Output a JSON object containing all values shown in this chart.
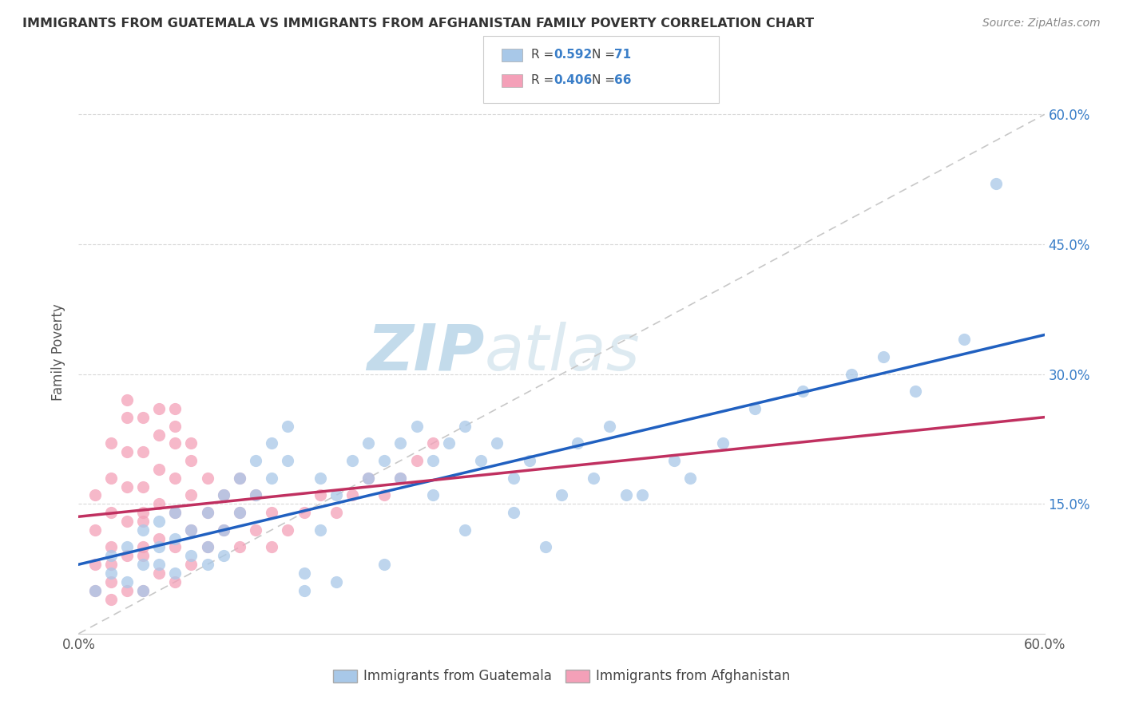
{
  "title": "IMMIGRANTS FROM GUATEMALA VS IMMIGRANTS FROM AFGHANISTAN FAMILY POVERTY CORRELATION CHART",
  "source": "Source: ZipAtlas.com",
  "ylabel": "Family Poverty",
  "legend_label1": "Immigrants from Guatemala",
  "legend_label2": "Immigrants from Afghanistan",
  "R1": "0.592",
  "N1": "71",
  "R2": "0.406",
  "N2": "66",
  "xlim": [
    0.0,
    0.6
  ],
  "ylim": [
    0.0,
    0.65
  ],
  "color_guatemala": "#a8c8e8",
  "color_afghanistan": "#f4a0b8",
  "line_color_guatemala": "#2060c0",
  "line_color_afghanistan": "#c03060",
  "line_color_diagonal": "#c8c8c8",
  "watermark_zip": "ZIP",
  "watermark_atlas": "atlas",
  "background_color": "#ffffff",
  "guatemala_x": [
    0.01,
    0.02,
    0.02,
    0.03,
    0.03,
    0.04,
    0.04,
    0.04,
    0.05,
    0.05,
    0.05,
    0.06,
    0.06,
    0.06,
    0.07,
    0.07,
    0.08,
    0.08,
    0.08,
    0.09,
    0.09,
    0.09,
    0.1,
    0.1,
    0.11,
    0.11,
    0.12,
    0.12,
    0.13,
    0.13,
    0.14,
    0.15,
    0.15,
    0.16,
    0.17,
    0.18,
    0.18,
    0.19,
    0.2,
    0.2,
    0.21,
    0.22,
    0.22,
    0.23,
    0.24,
    0.25,
    0.26,
    0.27,
    0.28,
    0.3,
    0.31,
    0.32,
    0.33,
    0.35,
    0.37,
    0.38,
    0.4,
    0.42,
    0.45,
    0.48,
    0.5,
    0.52,
    0.55,
    0.57,
    0.14,
    0.16,
    0.19,
    0.24,
    0.27,
    0.29,
    0.34
  ],
  "guatemala_y": [
    0.05,
    0.07,
    0.09,
    0.06,
    0.1,
    0.08,
    0.12,
    0.05,
    0.1,
    0.08,
    0.13,
    0.07,
    0.11,
    0.14,
    0.09,
    0.12,
    0.1,
    0.14,
    0.08,
    0.12,
    0.16,
    0.09,
    0.14,
    0.18,
    0.16,
    0.2,
    0.18,
    0.22,
    0.2,
    0.24,
    0.07,
    0.12,
    0.18,
    0.16,
    0.2,
    0.22,
    0.18,
    0.2,
    0.22,
    0.18,
    0.24,
    0.2,
    0.16,
    0.22,
    0.24,
    0.2,
    0.22,
    0.18,
    0.2,
    0.16,
    0.22,
    0.18,
    0.24,
    0.16,
    0.2,
    0.18,
    0.22,
    0.26,
    0.28,
    0.3,
    0.32,
    0.28,
    0.34,
    0.52,
    0.05,
    0.06,
    0.08,
    0.12,
    0.14,
    0.1,
    0.16
  ],
  "afghanistan_x": [
    0.01,
    0.01,
    0.01,
    0.01,
    0.02,
    0.02,
    0.02,
    0.02,
    0.02,
    0.02,
    0.02,
    0.03,
    0.03,
    0.03,
    0.03,
    0.03,
    0.03,
    0.04,
    0.04,
    0.04,
    0.04,
    0.04,
    0.04,
    0.04,
    0.04,
    0.05,
    0.05,
    0.05,
    0.05,
    0.05,
    0.06,
    0.06,
    0.06,
    0.06,
    0.06,
    0.06,
    0.07,
    0.07,
    0.07,
    0.07,
    0.08,
    0.08,
    0.08,
    0.09,
    0.09,
    0.1,
    0.1,
    0.1,
    0.11,
    0.11,
    0.12,
    0.12,
    0.13,
    0.14,
    0.15,
    0.16,
    0.17,
    0.18,
    0.19,
    0.2,
    0.21,
    0.22,
    0.03,
    0.05,
    0.06,
    0.07
  ],
  "afghanistan_y": [
    0.05,
    0.08,
    0.12,
    0.16,
    0.04,
    0.08,
    0.1,
    0.14,
    0.18,
    0.22,
    0.06,
    0.05,
    0.09,
    0.13,
    0.17,
    0.21,
    0.25,
    0.05,
    0.09,
    0.13,
    0.17,
    0.21,
    0.25,
    0.1,
    0.14,
    0.07,
    0.11,
    0.15,
    0.19,
    0.23,
    0.06,
    0.1,
    0.14,
    0.18,
    0.22,
    0.26,
    0.08,
    0.12,
    0.16,
    0.2,
    0.1,
    0.14,
    0.18,
    0.12,
    0.16,
    0.1,
    0.14,
    0.18,
    0.12,
    0.16,
    0.1,
    0.14,
    0.12,
    0.14,
    0.16,
    0.14,
    0.16,
    0.18,
    0.16,
    0.18,
    0.2,
    0.22,
    0.27,
    0.26,
    0.24,
    0.22
  ]
}
